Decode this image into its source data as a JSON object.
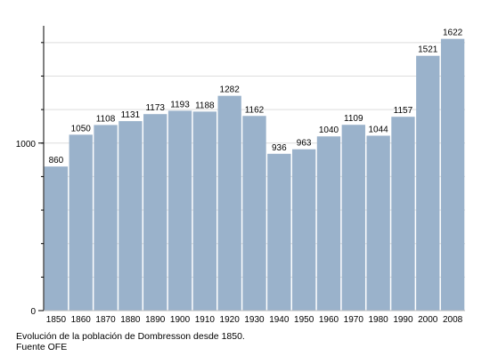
{
  "chart_data": {
    "type": "bar",
    "categories": [
      "1850",
      "1860",
      "1870",
      "1880",
      "1890",
      "1900",
      "1910",
      "1920",
      "1930",
      "1940",
      "1950",
      "1960",
      "1970",
      "1980",
      "1990",
      "2000",
      "2008"
    ],
    "values": [
      860,
      1050,
      1108,
      1131,
      1173,
      1193,
      1188,
      1282,
      1162,
      936,
      963,
      1040,
      1109,
      1044,
      1157,
      1521,
      1622
    ],
    "data_labels": [
      "860",
      "1050",
      "1108",
      "1131",
      "1173",
      "1193",
      "1188",
      "1282",
      "1162",
      "936",
      "963",
      "1040",
      "1109",
      "1044",
      "1157",
      "1521",
      "1622"
    ],
    "y_tick_labels": [
      {
        "value": 0,
        "label": "0"
      },
      {
        "value": 1000,
        "label": "1000"
      }
    ],
    "ylim": [
      0,
      1700
    ],
    "minor_tick_step": 200,
    "grid": true,
    "legend": "none",
    "title": "",
    "xlabel": "",
    "ylabel": "",
    "colors": {
      "bar": "#9ab2cb",
      "grid": "#dddddd",
      "axis": "#000000"
    }
  },
  "caption": {
    "line1": "Evolución de la población de Dombresson desde 1850.",
    "line2": "Fuente OFE"
  }
}
